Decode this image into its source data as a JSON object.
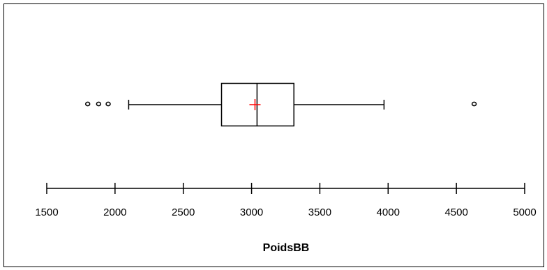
{
  "chart_data": {
    "type": "boxplot",
    "title": "",
    "xlabel": "PoidsBB",
    "ylabel": "",
    "orientation": "horizontal",
    "xlim": [
      1500,
      5000
    ],
    "ticks": [
      1500,
      2000,
      2500,
      3000,
      3500,
      4000,
      4500,
      5000
    ],
    "tick_labels": [
      "1500",
      "2000",
      "2500",
      "3000",
      "3500",
      "4000",
      "4500",
      "5000"
    ],
    "box": {
      "whisker_low": 2100,
      "q1": 2780,
      "median": 3040,
      "mean": 3025,
      "q3": 3310,
      "whisker_high": 3970
    },
    "outliers": [
      1800,
      1880,
      1950,
      4630
    ],
    "colors": {
      "mean_marker": "#ff0000",
      "lines": "#000000"
    }
  }
}
